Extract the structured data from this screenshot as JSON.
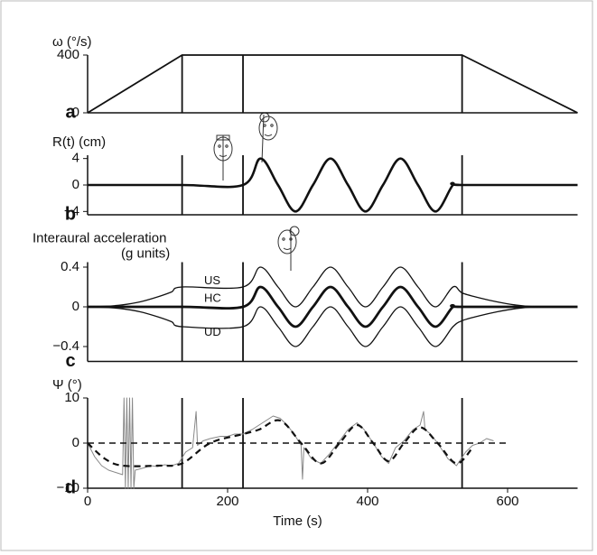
{
  "chart_data": [
    {
      "type": "line",
      "panel_label": "a",
      "ylabel": "ω (°/s)",
      "xlim": [
        0,
        700
      ],
      "ylim": [
        0,
        400
      ],
      "yticks": [
        0,
        400
      ],
      "vlines": [
        135,
        222,
        535
      ],
      "series": [
        {
          "color": "#111",
          "line_width": 1.8,
          "smooth": false,
          "x": [
            0,
            135,
            535,
            700
          ],
          "values": [
            0,
            400,
            400,
            0
          ]
        }
      ]
    },
    {
      "type": "line",
      "panel_label": "b",
      "ylabel": "R(t) (cm)",
      "xlim": [
        0,
        700
      ],
      "ylim": [
        -4.5,
        4.5
      ],
      "yticks": [
        {
          "value": 4,
          "label": "4"
        },
        0,
        {
          "value": -4,
          "label": "−4"
        }
      ],
      "vlines": [
        135,
        222,
        535
      ],
      "series": [
        {
          "color": "#111",
          "line_width": 2.6,
          "smooth": true,
          "x": [
            0,
            135,
            222,
            247,
            272,
            297,
            322,
            347,
            372,
            397,
            422,
            447,
            472,
            497,
            522,
            535,
            700
          ],
          "values": [
            0,
            0,
            0,
            4,
            0,
            -4,
            0,
            4,
            0,
            -4,
            0,
            4,
            0,
            -4,
            0,
            0,
            0
          ]
        }
      ]
    },
    {
      "type": "line",
      "panel_label": "c",
      "ylabel": [
        "Interaural acceleration",
        "(g units)"
      ],
      "xlim": [
        0,
        700
      ],
      "ylim": [
        -0.55,
        0.45
      ],
      "yticks": [
        0.4,
        0,
        {
          "value": -0.4,
          "label": "−0.4"
        }
      ],
      "vlines": [
        135,
        222,
        535
      ],
      "series": [
        {
          "name": "US",
          "color": "#111",
          "line_width": 1.3,
          "smooth": true,
          "x": [
            0,
            25,
            50,
            75,
            100,
            120,
            135,
            222,
            247,
            272,
            297,
            322,
            347,
            372,
            397,
            422,
            447,
            472,
            497,
            522,
            535,
            560,
            585,
            610,
            640,
            700
          ],
          "values": [
            0,
            0.005,
            0.02,
            0.05,
            0.1,
            0.15,
            0.2,
            0.2,
            0.4,
            0.2,
            0,
            0.2,
            0.4,
            0.2,
            0,
            0.2,
            0.4,
            0.2,
            0,
            0.2,
            0.14,
            0.09,
            0.05,
            0.02,
            0,
            0
          ]
        },
        {
          "name": "HC",
          "color": "#111",
          "line_width": 2.8,
          "smooth": true,
          "x": [
            0,
            135,
            222,
            247,
            272,
            297,
            322,
            347,
            372,
            397,
            422,
            447,
            472,
            497,
            522,
            535,
            700
          ],
          "values": [
            0,
            0,
            0,
            0.2,
            0,
            -0.2,
            0,
            0.2,
            0,
            -0.2,
            0,
            0.2,
            0,
            -0.2,
            0,
            0,
            0
          ]
        },
        {
          "name": "UD",
          "color": "#111",
          "line_width": 1.3,
          "smooth": true,
          "x": [
            0,
            25,
            50,
            75,
            100,
            120,
            135,
            222,
            247,
            272,
            297,
            322,
            347,
            372,
            397,
            422,
            447,
            472,
            497,
            522,
            535,
            560,
            585,
            610,
            640,
            700
          ],
          "values": [
            0,
            -0.005,
            -0.02,
            -0.05,
            -0.1,
            -0.15,
            -0.2,
            -0.2,
            0,
            -0.2,
            -0.4,
            -0.2,
            0,
            -0.2,
            -0.4,
            -0.2,
            0,
            -0.2,
            -0.4,
            -0.2,
            -0.14,
            -0.09,
            -0.05,
            -0.02,
            0,
            0
          ]
        }
      ]
    },
    {
      "type": "line",
      "panel_label": "d",
      "ylabel": "Ψ (°)",
      "xlabel": "Time (s)",
      "xlim": [
        0,
        700
      ],
      "ylim": [
        -10,
        10
      ],
      "yticks": [
        10,
        0,
        {
          "value": -10,
          "label": "−10"
        }
      ],
      "xticks": [
        0,
        200,
        400,
        600
      ],
      "vlines": [
        135,
        222,
        535
      ],
      "series": [
        {
          "color": "#888",
          "line_width": 1,
          "smooth": false,
          "x": [
            0,
            10,
            20,
            30,
            40,
            50,
            52,
            54,
            56,
            58,
            60,
            62,
            64,
            66,
            68,
            80,
            90,
            100,
            110,
            120,
            130,
            140,
            150,
            155,
            157,
            165,
            175,
            190,
            200,
            210,
            222,
            235,
            250,
            265,
            275,
            285,
            295,
            305,
            307,
            309,
            320,
            333,
            345,
            360,
            372,
            385,
            395,
            408,
            420,
            430,
            440,
            452,
            465,
            475,
            480,
            482,
            490,
            500,
            515,
            527,
            540,
            550,
            560,
            570,
            580
          ],
          "values": [
            0,
            -3,
            -5,
            -6,
            -6.5,
            -7,
            10,
            -10,
            10,
            -10,
            10,
            -10,
            10,
            -10,
            -6,
            -5.5,
            -5,
            -5.2,
            -4.8,
            -5,
            -4.5,
            -2,
            -1,
            7,
            -0.5,
            0.5,
            1,
            1.5,
            1.5,
            2,
            2,
            3,
            4.5,
            6,
            5.5,
            4,
            2,
            -0.5,
            -8,
            -1,
            -3.5,
            -4.5,
            -2.5,
            0.5,
            3,
            4.5,
            3,
            0,
            -3,
            -4.5,
            -1,
            0.5,
            3,
            4,
            7,
            3,
            2,
            0,
            -3.5,
            -5,
            -2,
            -0.5,
            0,
            1,
            0.5
          ]
        },
        {
          "color": "#111",
          "line_width": 2.2,
          "smooth": true,
          "dash": true,
          "x": [
            0,
            25,
            50,
            100,
            135,
            175,
            222,
            245,
            275,
            305,
            333,
            360,
            385,
            408,
            430,
            452,
            475,
            500,
            527,
            550
          ],
          "values": [
            0,
            -3.5,
            -5,
            -5,
            -4.5,
            0,
            2,
            3,
            5,
            0,
            -4.5,
            0,
            4,
            0,
            -4,
            0,
            3.5,
            0,
            -4.5,
            -1
          ]
        },
        {
          "color": "#111",
          "line_width": 1.5,
          "smooth": false,
          "dash": true,
          "x": [
            0,
            600
          ],
          "values": [
            0,
            0
          ]
        }
      ]
    }
  ]
}
